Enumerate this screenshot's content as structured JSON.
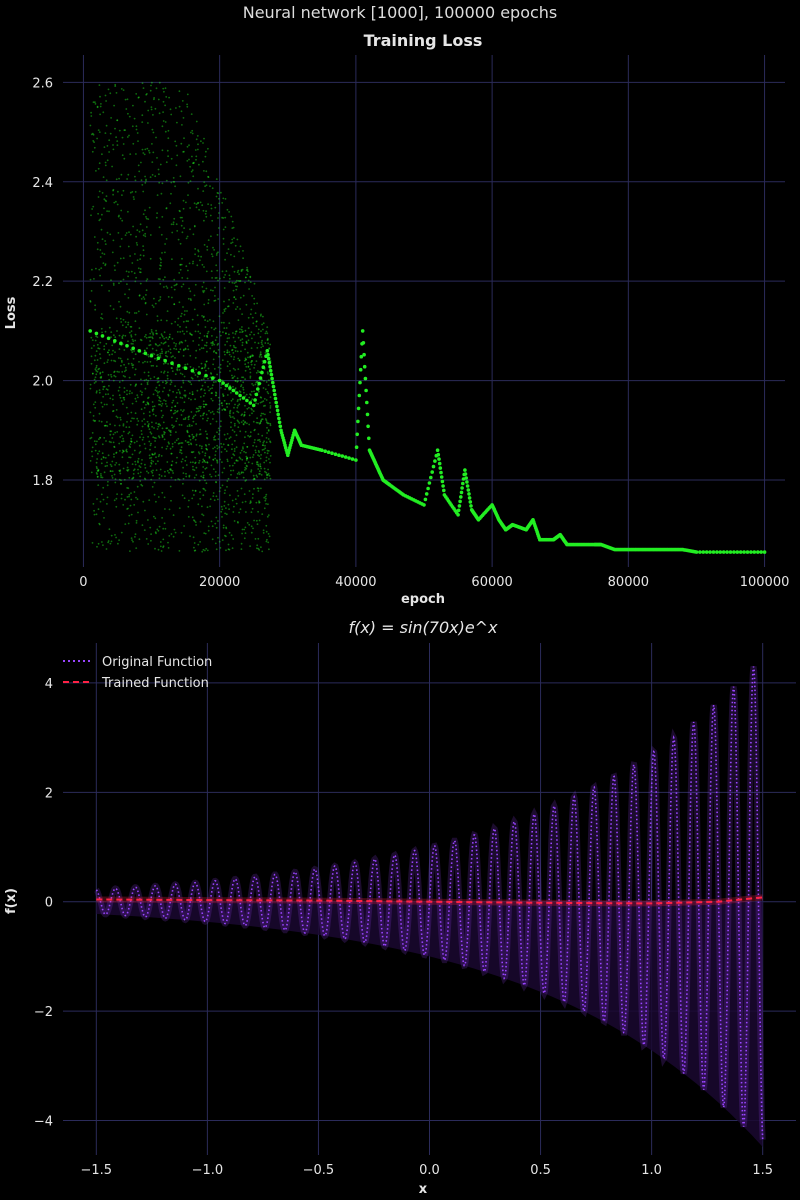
{
  "figure": {
    "suptitle": "Neural network [1000], 100000 epochs",
    "background": "#000000",
    "grid_color": "#2b2b5a"
  },
  "chart_data": [
    {
      "type": "scatter",
      "title": "Training Loss",
      "xlabel": "epoch",
      "ylabel": "Loss",
      "xlim": [
        -3000,
        103000
      ],
      "ylim": [
        1.625,
        2.655
      ],
      "xticks": [
        0,
        20000,
        40000,
        60000,
        80000,
        100000
      ],
      "xtick_labels": [
        "0",
        "20000",
        "40000",
        "60000",
        "80000",
        "100000"
      ],
      "yticks": [
        1.8,
        2.0,
        2.2,
        2.4,
        2.6
      ],
      "ytick_labels": [
        "1.8",
        "2.0",
        "2.2",
        "2.4",
        "2.6"
      ],
      "grid": true,
      "color": "#22ee22",
      "series": [
        {
          "x": [
            1000,
            10000,
            20000,
            25000,
            27000,
            28000,
            29000,
            30000,
            31000,
            32000,
            35000,
            40000,
            41000,
            42000,
            43000,
            44000,
            45000,
            47000,
            50000,
            52000,
            53000,
            55000,
            56000,
            57000,
            58000,
            60000,
            61000,
            62000,
            63000,
            65000,
            66000,
            67000,
            69000,
            70000,
            71000,
            73000,
            75000,
            76000,
            78000,
            80000,
            82000,
            84000,
            86000,
            88000,
            90000,
            95000,
            100000
          ],
          "y": [
            2.1,
            2.05,
            2.0,
            1.95,
            2.06,
            1.98,
            1.9,
            1.85,
            1.9,
            1.87,
            1.86,
            1.84,
            2.1,
            1.86,
            1.83,
            1.8,
            1.79,
            1.77,
            1.75,
            1.86,
            1.77,
            1.73,
            1.82,
            1.74,
            1.72,
            1.75,
            1.72,
            1.7,
            1.71,
            1.7,
            1.72,
            1.68,
            1.68,
            1.69,
            1.67,
            1.67,
            1.67,
            1.67,
            1.66,
            1.66,
            1.66,
            1.66,
            1.66,
            1.66,
            1.655,
            1.655,
            1.655
          ]
        }
      ]
    },
    {
      "type": "line",
      "title": "f(x) = sin(70x)e^x",
      "xlabel": "x",
      "ylabel": "f(x)",
      "xlim": [
        -1.65,
        1.65
      ],
      "ylim": [
        -4.63,
        4.73
      ],
      "xticks": [
        -1.5,
        -1.0,
        -0.5,
        0.0,
        0.5,
        1.0,
        1.5
      ],
      "xtick_labels": [
        "−1.5",
        "−1.0",
        "−0.5",
        "0.0",
        "0.5",
        "1.0",
        "1.5"
      ],
      "yticks": [
        -4,
        -2,
        0,
        2,
        4
      ],
      "ytick_labels": [
        "−4",
        "−2",
        "0",
        "2",
        "4"
      ],
      "grid": true,
      "legend_position": "top-left",
      "x_range": [
        -1.5,
        1.5
      ],
      "series": [
        {
          "name": "Original Function",
          "style": "dotted",
          "color": "#9a45ff",
          "function": "sin(70x)*exp(x)"
        },
        {
          "name": "Trained Function",
          "style": "dashed",
          "color": "#ff2244",
          "x": [
            -1.5,
            -1.0,
            -0.5,
            0.0,
            0.5,
            1.0,
            1.3,
            1.5
          ],
          "y": [
            0.04,
            0.03,
            0.02,
            0.0,
            -0.02,
            -0.03,
            0.0,
            0.08
          ]
        }
      ]
    }
  ]
}
